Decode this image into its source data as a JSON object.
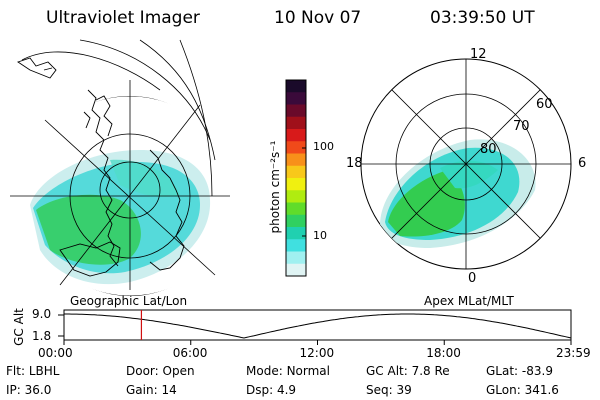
{
  "header": {
    "instrument": "Ultraviolet Imager",
    "date": "10 Nov 07",
    "time": "03:39:50 UT"
  },
  "colorbar": {
    "label": "photon cm⁻²s⁻¹",
    "tick_labels": [
      "100",
      "10"
    ],
    "tick_values": [
      100,
      10
    ],
    "colors": [
      "#1a0a2a",
      "#3a0a3a",
      "#6a0a2a",
      "#a0101a",
      "#d81a1a",
      "#f04a1a",
      "#f8901a",
      "#f8c81a",
      "#f0f010",
      "#b0ec10",
      "#60dc2a",
      "#30d060",
      "#20d0b0",
      "#40e0e0",
      "#a0f0f0",
      "#e0f4f4"
    ]
  },
  "left_panel": {
    "caption": "Geographic Lat/Lon"
  },
  "right_panel": {
    "caption": "Apex MLat/MLT",
    "mlt_labels": {
      "top": "12",
      "bottom": "0",
      "left": "18",
      "right": "6"
    },
    "lat_labels": [
      "60",
      "70",
      "80"
    ]
  },
  "timeline": {
    "axis_label": "GC Alt",
    "y_ticks": [
      "9.0",
      "1.8"
    ],
    "x_ticks": [
      "00:00",
      "06:00",
      "12:00",
      "18:00",
      "23:59"
    ],
    "current_time_fraction": 0.1527,
    "marker_color": "#d01010"
  },
  "footer": {
    "row1": [
      {
        "label": "Flt:",
        "value": "LBHL"
      },
      {
        "label": "Door:",
        "value": "Open"
      },
      {
        "label": "Mode:",
        "value": "Normal"
      },
      {
        "label": "GC Alt:",
        "value": "7.8 Re"
      },
      {
        "label": "GLat:",
        "value": "-83.9"
      }
    ],
    "row2": [
      {
        "label": "IP:",
        "value": "36.0"
      },
      {
        "label": "Gain:",
        "value": "14"
      },
      {
        "label": "Dsp:",
        "value": "4.9"
      },
      {
        "label": "Seq:",
        "value": "39"
      },
      {
        "label": "GLon:",
        "value": "341.6"
      }
    ]
  }
}
